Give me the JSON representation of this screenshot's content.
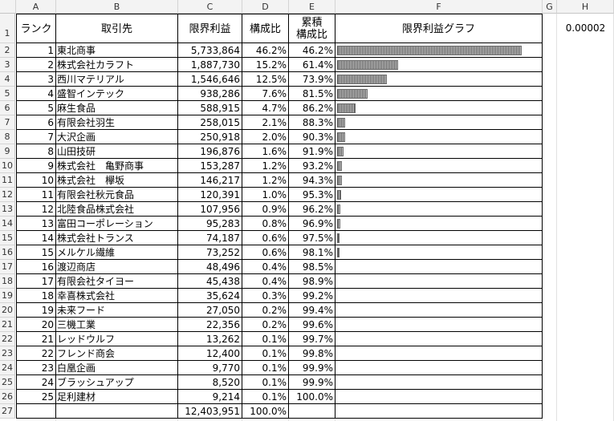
{
  "columns": [
    "A",
    "B",
    "C",
    "D",
    "E",
    "F",
    "G",
    "H"
  ],
  "headers": {
    "rank": "ランク",
    "customer": "取引先",
    "margin": "限界利益",
    "ratio": "構成比",
    "cumulative_l1": "累積",
    "cumulative_l2": "構成比",
    "graph": "限界利益グラフ"
  },
  "h1_value": "0.00002",
  "rows": [
    {
      "rank": "1",
      "name": "東北商事",
      "profit": "5,733,864",
      "ratio": "46.2%",
      "cum": "46.2%",
      "bar": 0.462
    },
    {
      "rank": "2",
      "name": "株式会社カラフト",
      "profit": "1,887,730",
      "ratio": "15.2%",
      "cum": "61.4%",
      "bar": 0.152
    },
    {
      "rank": "3",
      "name": "西川マテリアル",
      "profit": "1,546,646",
      "ratio": "12.5%",
      "cum": "73.9%",
      "bar": 0.125
    },
    {
      "rank": "4",
      "name": "盛智インテック",
      "profit": "938,286",
      "ratio": "7.6%",
      "cum": "81.5%",
      "bar": 0.076
    },
    {
      "rank": "5",
      "name": "麻生食品",
      "profit": "588,915",
      "ratio": "4.7%",
      "cum": "86.2%",
      "bar": 0.047
    },
    {
      "rank": "6",
      "name": "有限会社羽生",
      "profit": "258,015",
      "ratio": "2.1%",
      "cum": "88.3%",
      "bar": 0.021
    },
    {
      "rank": "7",
      "name": "大沢企画",
      "profit": "250,918",
      "ratio": "2.0%",
      "cum": "90.3%",
      "bar": 0.02
    },
    {
      "rank": "8",
      "name": "山田技研",
      "profit": "196,876",
      "ratio": "1.6%",
      "cum": "91.9%",
      "bar": 0.016
    },
    {
      "rank": "9",
      "name": "株式会社　亀野商事",
      "profit": "153,287",
      "ratio": "1.2%",
      "cum": "93.2%",
      "bar": 0.012
    },
    {
      "rank": "10",
      "name": "株式会社　欅坂",
      "profit": "146,217",
      "ratio": "1.2%",
      "cum": "94.3%",
      "bar": 0.012
    },
    {
      "rank": "11",
      "name": "有限会社秋元食品",
      "profit": "120,391",
      "ratio": "1.0%",
      "cum": "95.3%",
      "bar": 0.01
    },
    {
      "rank": "12",
      "name": "北陸食品株式会社",
      "profit": "107,956",
      "ratio": "0.9%",
      "cum": "96.2%",
      "bar": 0.009
    },
    {
      "rank": "13",
      "name": "富田コーポレーション",
      "profit": "95,283",
      "ratio": "0.8%",
      "cum": "96.9%",
      "bar": 0.008
    },
    {
      "rank": "14",
      "name": "株式会社トランス",
      "profit": "74,187",
      "ratio": "0.6%",
      "cum": "97.5%",
      "bar": 0.006
    },
    {
      "rank": "15",
      "name": "メルケル繊維",
      "profit": "73,252",
      "ratio": "0.6%",
      "cum": "98.1%",
      "bar": 0.006
    },
    {
      "rank": "16",
      "name": "渡辺商店",
      "profit": "48,496",
      "ratio": "0.4%",
      "cum": "98.5%",
      "bar": 0
    },
    {
      "rank": "17",
      "name": "有限会社タイヨー",
      "profit": "45,438",
      "ratio": "0.4%",
      "cum": "98.9%",
      "bar": 0
    },
    {
      "rank": "18",
      "name": "幸喜株式会社",
      "profit": "35,624",
      "ratio": "0.3%",
      "cum": "99.2%",
      "bar": 0
    },
    {
      "rank": "19",
      "name": "未来フード",
      "profit": "27,050",
      "ratio": "0.2%",
      "cum": "99.4%",
      "bar": 0
    },
    {
      "rank": "20",
      "name": "三機工業",
      "profit": "22,356",
      "ratio": "0.2%",
      "cum": "99.6%",
      "bar": 0
    },
    {
      "rank": "21",
      "name": "レッドウルフ",
      "profit": "13,262",
      "ratio": "0.1%",
      "cum": "99.7%",
      "bar": 0
    },
    {
      "rank": "22",
      "name": "フレンド商会",
      "profit": "12,400",
      "ratio": "0.1%",
      "cum": "99.8%",
      "bar": 0
    },
    {
      "rank": "23",
      "name": "白凰企画",
      "profit": "9,770",
      "ratio": "0.1%",
      "cum": "99.9%",
      "bar": 0
    },
    {
      "rank": "24",
      "name": "ブラッシュアップ",
      "profit": "8,520",
      "ratio": "0.1%",
      "cum": "99.9%",
      "bar": 0
    },
    {
      "rank": "25",
      "name": "足利建材",
      "profit": "9,214",
      "ratio": "0.1%",
      "cum": "100.0%",
      "bar": 0
    }
  ],
  "total": {
    "profit": "12,403,951",
    "ratio": "100.0%"
  }
}
